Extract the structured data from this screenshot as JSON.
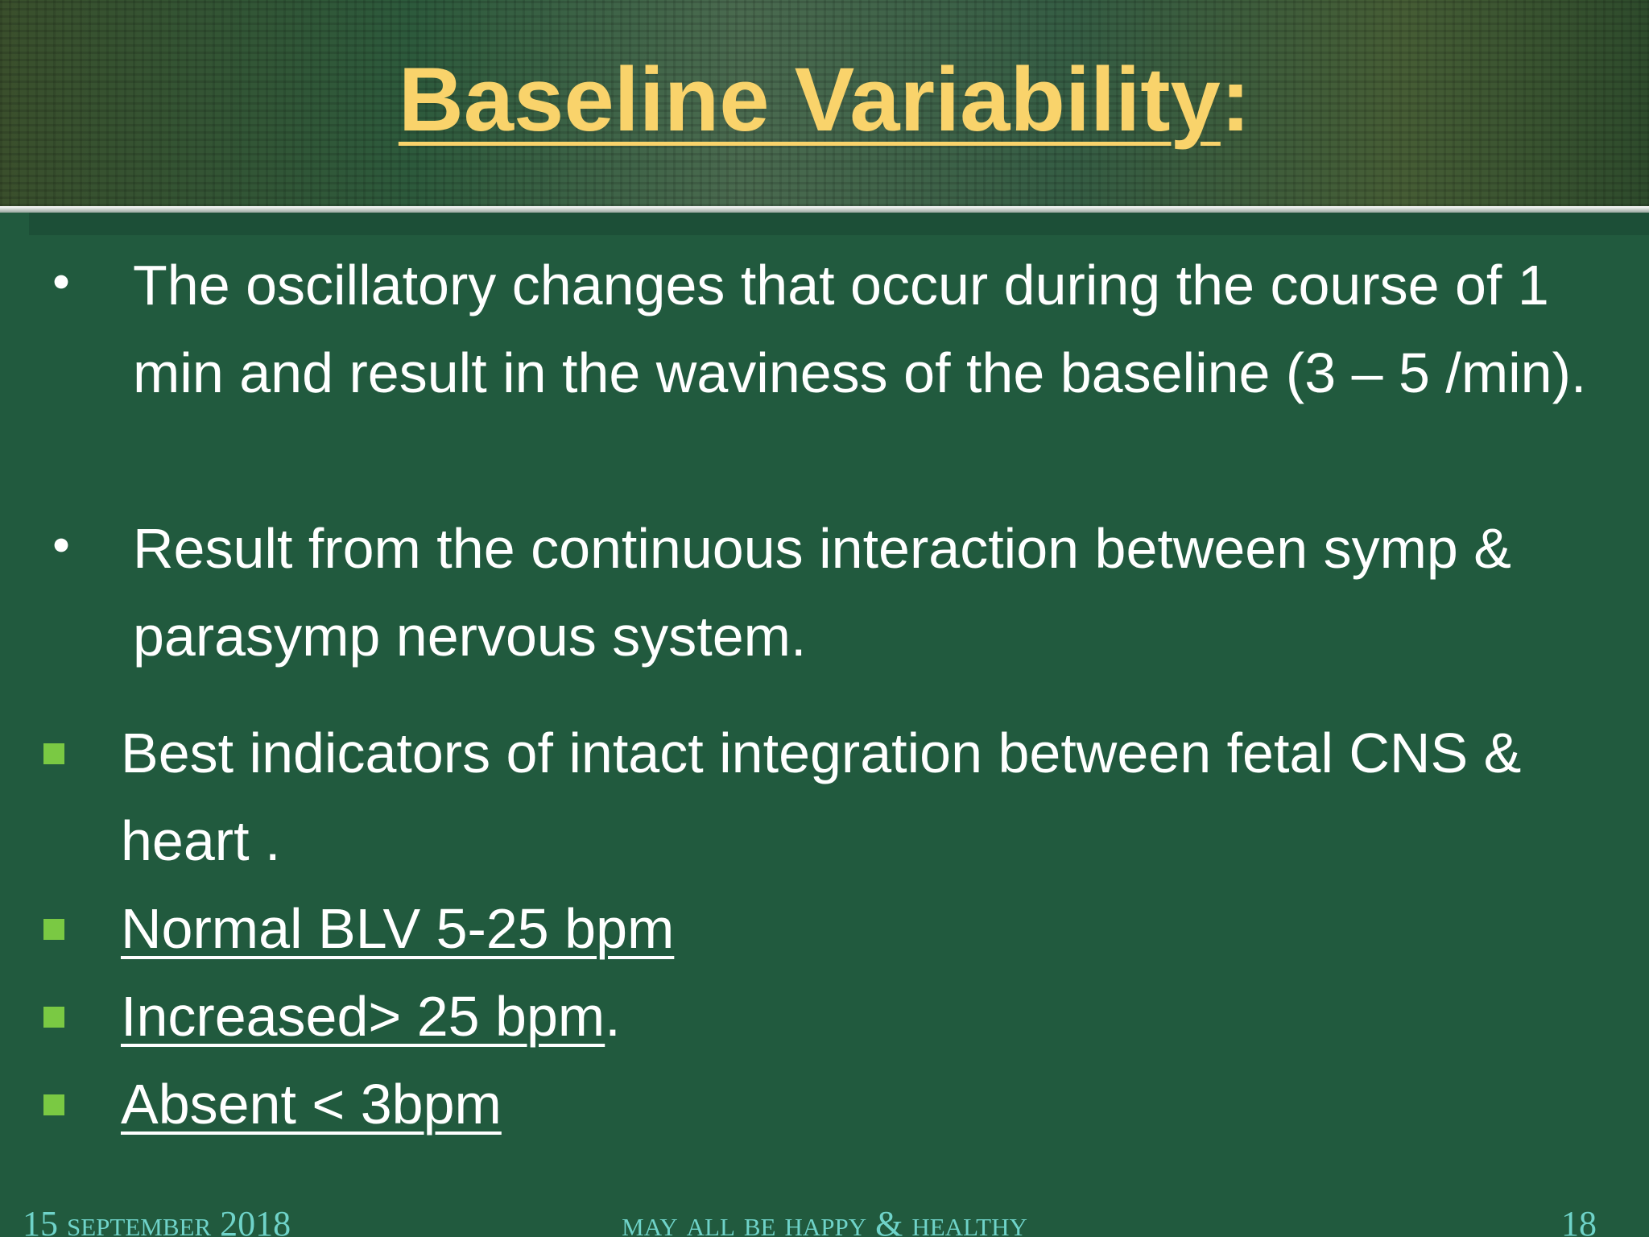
{
  "header": {
    "title": "Baseline Variability",
    "title_suffix": ":"
  },
  "round_bullets": [
    "The oscillatory changes that occur during the course of 1 min and result in the waviness of the baseline (3 – 5 /min).",
    "Result from the continuous interaction between symp & parasymp nervous system."
  ],
  "square_bullets": [
    {
      "text": "Best indicators of intact integration between fetal CNS & heart ."
    },
    {
      "underlined": "Normal BLV 5-25 bpm"
    },
    {
      "underlined": "Increased> 25 bpm",
      "rest": "."
    },
    {
      "underlined": "Absent < 3bpm"
    }
  ],
  "footer": {
    "date": "15 September 2018",
    "tagline": "May all be happy & healthy",
    "page": "18"
  }
}
